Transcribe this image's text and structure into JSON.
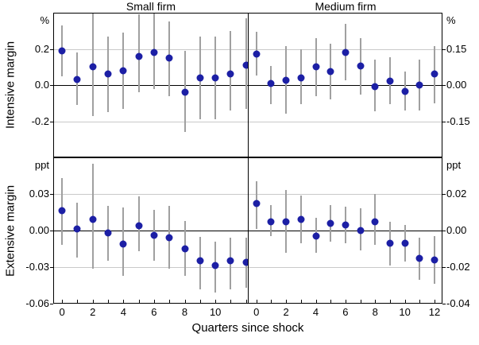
{
  "figure": {
    "titles": [
      "Small firm",
      "Medium firm"
    ],
    "row_labels": [
      "Intensive margin",
      "Extensive margin"
    ],
    "x_axis_label": "Quarters since shock"
  },
  "colors": {
    "point": "#1c1fa5",
    "whisker": "#a0a0a0",
    "gridline": "#c9c9c9",
    "axis": "#000000",
    "background": "#ffffff"
  },
  "chart_data": [
    {
      "type": "scatter",
      "title": "Small firm",
      "row": "Intensive margin",
      "unit": "%",
      "axis_side": "left",
      "ylim": [
        -0.4,
        0.4
      ],
      "yticks": [
        {
          "value": 0.2,
          "label": "0.2"
        },
        {
          "value": 0.0,
          "label": "0.0"
        },
        {
          "value": -0.2,
          "label": "-0.2"
        }
      ],
      "xtick_labels": [
        0,
        2,
        4,
        6,
        8,
        10
      ],
      "points": [
        {
          "q": 0,
          "y": 0.19,
          "lo": 0.05,
          "hi": 0.33
        },
        {
          "q": 1,
          "y": 0.03,
          "lo": -0.11,
          "hi": 0.18
        },
        {
          "q": 2,
          "y": 0.1,
          "lo": -0.17,
          "hi": 0.43
        },
        {
          "q": 3,
          "y": 0.06,
          "lo": -0.15,
          "hi": 0.27
        },
        {
          "q": 4,
          "y": 0.08,
          "lo": -0.13,
          "hi": 0.29
        },
        {
          "q": 5,
          "y": 0.16,
          "lo": -0.04,
          "hi": 0.39
        },
        {
          "q": 6,
          "y": 0.18,
          "lo": -0.02,
          "hi": 0.41
        },
        {
          "q": 7,
          "y": 0.15,
          "lo": -0.06,
          "hi": 0.35
        },
        {
          "q": 8,
          "y": -0.04,
          "lo": -0.26,
          "hi": 0.19
        },
        {
          "q": 9,
          "y": 0.04,
          "lo": -0.19,
          "hi": 0.27
        },
        {
          "q": 10,
          "y": 0.04,
          "lo": -0.19,
          "hi": 0.27
        },
        {
          "q": 11,
          "y": 0.06,
          "lo": -0.14,
          "hi": 0.3
        },
        {
          "q": 12,
          "y": 0.11,
          "lo": -0.13,
          "hi": 0.37
        }
      ]
    },
    {
      "type": "scatter",
      "title": "Medium firm",
      "row": "Intensive margin",
      "unit": "%",
      "axis_side": "right",
      "ylim": [
        -0.3,
        0.3
      ],
      "yticks": [
        {
          "value": 0.15,
          "label": "0.15"
        },
        {
          "value": 0.0,
          "label": "0.00"
        },
        {
          "value": -0.15,
          "label": "-0.15"
        }
      ],
      "xtick_labels": [
        0,
        2,
        4,
        6,
        8,
        10,
        12
      ],
      "points": [
        {
          "q": 0,
          "y": 0.13,
          "lo": 0.04,
          "hi": 0.22
        },
        {
          "q": 1,
          "y": 0.005,
          "lo": -0.08,
          "hi": 0.08
        },
        {
          "q": 2,
          "y": 0.02,
          "lo": -0.12,
          "hi": 0.16
        },
        {
          "q": 3,
          "y": 0.03,
          "lo": -0.08,
          "hi": 0.15
        },
        {
          "q": 4,
          "y": 0.075,
          "lo": -0.045,
          "hi": 0.195
        },
        {
          "q": 5,
          "y": 0.055,
          "lo": -0.06,
          "hi": 0.17
        },
        {
          "q": 6,
          "y": 0.135,
          "lo": 0.02,
          "hi": 0.255
        },
        {
          "q": 7,
          "y": 0.08,
          "lo": -0.04,
          "hi": 0.195
        },
        {
          "q": 8,
          "y": -0.005,
          "lo": -0.11,
          "hi": 0.105
        },
        {
          "q": 9,
          "y": 0.015,
          "lo": -0.08,
          "hi": 0.115
        },
        {
          "q": 10,
          "y": -0.025,
          "lo": -0.105,
          "hi": 0.055
        },
        {
          "q": 11,
          "y": 0.0,
          "lo": -0.105,
          "hi": 0.105
        },
        {
          "q": 12,
          "y": 0.045,
          "lo": -0.075,
          "hi": 0.16
        }
      ]
    },
    {
      "type": "scatter",
      "title": "Small firm",
      "row": "Extensive margin",
      "unit": "ppt",
      "axis_side": "left",
      "ylim": [
        -0.06,
        0.06
      ],
      "yticks": [
        {
          "value": 0.03,
          "label": "0.03"
        },
        {
          "value": 0.0,
          "label": "0.00"
        },
        {
          "value": -0.03,
          "label": "-0.03"
        },
        {
          "value": -0.06,
          "label": "-0.06"
        }
      ],
      "xtick_labels": [
        0,
        2,
        4,
        6,
        8,
        10
      ],
      "points": [
        {
          "q": 0,
          "y": 0.016,
          "lo": -0.012,
          "hi": 0.043
        },
        {
          "q": 1,
          "y": 0.001,
          "lo": -0.022,
          "hi": 0.023
        },
        {
          "q": 2,
          "y": 0.009,
          "lo": -0.031,
          "hi": 0.055
        },
        {
          "q": 3,
          "y": -0.002,
          "lo": -0.025,
          "hi": 0.02
        },
        {
          "q": 4,
          "y": -0.011,
          "lo": -0.037,
          "hi": 0.019
        },
        {
          "q": 5,
          "y": 0.004,
          "lo": -0.017,
          "hi": 0.028
        },
        {
          "q": 6,
          "y": -0.004,
          "lo": -0.025,
          "hi": 0.017
        },
        {
          "q": 7,
          "y": -0.006,
          "lo": -0.031,
          "hi": 0.02
        },
        {
          "q": 8,
          "y": -0.015,
          "lo": -0.037,
          "hi": 0.008
        },
        {
          "q": 9,
          "y": -0.025,
          "lo": -0.048,
          "hi": -0.005
        },
        {
          "q": 10,
          "y": -0.029,
          "lo": -0.051,
          "hi": -0.009
        },
        {
          "q": 11,
          "y": -0.025,
          "lo": -0.048,
          "hi": -0.006
        },
        {
          "q": 12,
          "y": -0.026,
          "lo": -0.047,
          "hi": -0.006
        }
      ]
    },
    {
      "type": "scatter",
      "title": "Medium firm",
      "row": "Extensive margin",
      "unit": "ppt",
      "axis_side": "right",
      "ylim": [
        -0.04,
        0.04
      ],
      "yticks": [
        {
          "value": 0.02,
          "label": "0.02"
        },
        {
          "value": 0.0,
          "label": "0.00"
        },
        {
          "value": -0.02,
          "label": "-0.02"
        },
        {
          "value": -0.04,
          "label": "-0.04"
        }
      ],
      "xtick_labels": [
        0,
        2,
        4,
        6,
        8,
        10,
        12
      ],
      "points": [
        {
          "q": 0,
          "y": 0.015,
          "lo": 0.001,
          "hi": 0.027
        },
        {
          "q": 1,
          "y": 0.005,
          "lo": -0.003,
          "hi": 0.014
        },
        {
          "q": 2,
          "y": 0.005,
          "lo": -0.012,
          "hi": 0.022
        },
        {
          "q": 3,
          "y": 0.006,
          "lo": -0.007,
          "hi": 0.019
        },
        {
          "q": 4,
          "y": -0.003,
          "lo": -0.012,
          "hi": 0.007
        },
        {
          "q": 5,
          "y": 0.004,
          "lo": -0.006,
          "hi": 0.014
        },
        {
          "q": 6,
          "y": 0.003,
          "lo": -0.007,
          "hi": 0.013
        },
        {
          "q": 7,
          "y": 0.0,
          "lo": -0.011,
          "hi": 0.012
        },
        {
          "q": 8,
          "y": 0.005,
          "lo": -0.008,
          "hi": 0.02
        },
        {
          "q": 9,
          "y": -0.007,
          "lo": -0.019,
          "hi": 0.005
        },
        {
          "q": 10,
          "y": -0.007,
          "lo": -0.017,
          "hi": 0.003
        },
        {
          "q": 11,
          "y": -0.015,
          "lo": -0.027,
          "hi": -0.004
        },
        {
          "q": 12,
          "y": -0.016,
          "lo": -0.029,
          "hi": -0.003
        }
      ]
    }
  ]
}
